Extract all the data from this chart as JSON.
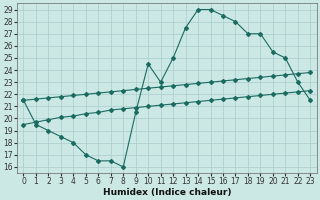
{
  "xlabel": "Humidex (Indice chaleur)",
  "bg_color": "#cce8e4",
  "grid_color": "#aacccc",
  "line_color": "#1a6b60",
  "xlim": [
    -0.5,
    23.5
  ],
  "ylim": [
    15.5,
    29.5
  ],
  "xticks": [
    0,
    1,
    2,
    3,
    4,
    5,
    6,
    7,
    8,
    9,
    10,
    11,
    12,
    13,
    14,
    15,
    16,
    17,
    18,
    19,
    20,
    21,
    22,
    23
  ],
  "yticks": [
    16,
    17,
    18,
    19,
    20,
    21,
    22,
    23,
    24,
    25,
    26,
    27,
    28,
    29
  ],
  "series1_x": [
    0,
    1,
    2,
    3,
    4,
    5,
    6,
    7,
    8,
    9,
    10,
    11,
    12,
    13,
    14,
    15,
    16,
    17,
    18,
    19,
    20,
    21,
    22,
    23
  ],
  "series1_y": [
    21.5,
    19.5,
    19.0,
    18.5,
    18.0,
    17.0,
    16.5,
    16.5,
    16.0,
    20.5,
    24.5,
    23.0,
    25.0,
    27.5,
    29.0,
    29.0,
    28.5,
    28.0,
    27.0,
    27.0,
    25.5,
    25.0,
    23.0,
    21.5
  ],
  "series2_x": [
    0,
    1,
    2,
    3,
    4,
    5,
    6,
    7,
    8,
    9,
    10,
    11,
    12,
    13,
    14,
    15,
    16,
    17,
    18,
    19,
    20,
    21,
    22,
    23
  ],
  "series2_y": [
    19.5,
    19.7,
    19.9,
    20.1,
    20.2,
    20.4,
    20.5,
    20.7,
    20.8,
    20.9,
    21.0,
    21.1,
    21.2,
    21.3,
    21.4,
    21.5,
    21.6,
    21.7,
    21.8,
    21.9,
    22.0,
    22.1,
    22.2,
    22.3
  ],
  "series3_x": [
    0,
    1,
    2,
    3,
    4,
    5,
    6,
    7,
    8,
    9,
    10,
    11,
    12,
    13,
    14,
    15,
    16,
    17,
    18,
    19,
    20,
    21,
    22,
    23
  ],
  "series3_y": [
    21.5,
    21.6,
    21.7,
    21.8,
    21.9,
    22.0,
    22.1,
    22.2,
    22.3,
    22.4,
    22.5,
    22.6,
    22.7,
    22.8,
    22.9,
    23.0,
    23.1,
    23.2,
    23.3,
    23.4,
    23.5,
    23.6,
    23.7,
    23.8
  ],
  "tick_fontsize": 5.5,
  "xlabel_fontsize": 6.5,
  "marker_size": 2.0,
  "line_width": 0.8
}
